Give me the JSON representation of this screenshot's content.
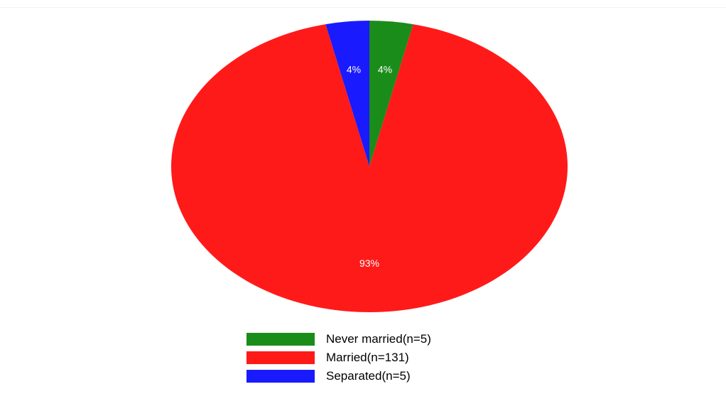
{
  "chart_data": {
    "type": "pie",
    "title": "",
    "start_angle_deg": 0,
    "direction": "clockwise",
    "slices": [
      {
        "label": "Never married(n=5)",
        "value": 5,
        "percent_label": "4%",
        "color": "#1a8c1a"
      },
      {
        "label": "Married(n=131)",
        "value": 131,
        "percent_label": "93%",
        "color": "#ff1a1a"
      },
      {
        "label": "Separated(n=5)",
        "value": 5,
        "percent_label": "4%",
        "color": "#1a1aff"
      }
    ],
    "legend_position": "bottom"
  }
}
